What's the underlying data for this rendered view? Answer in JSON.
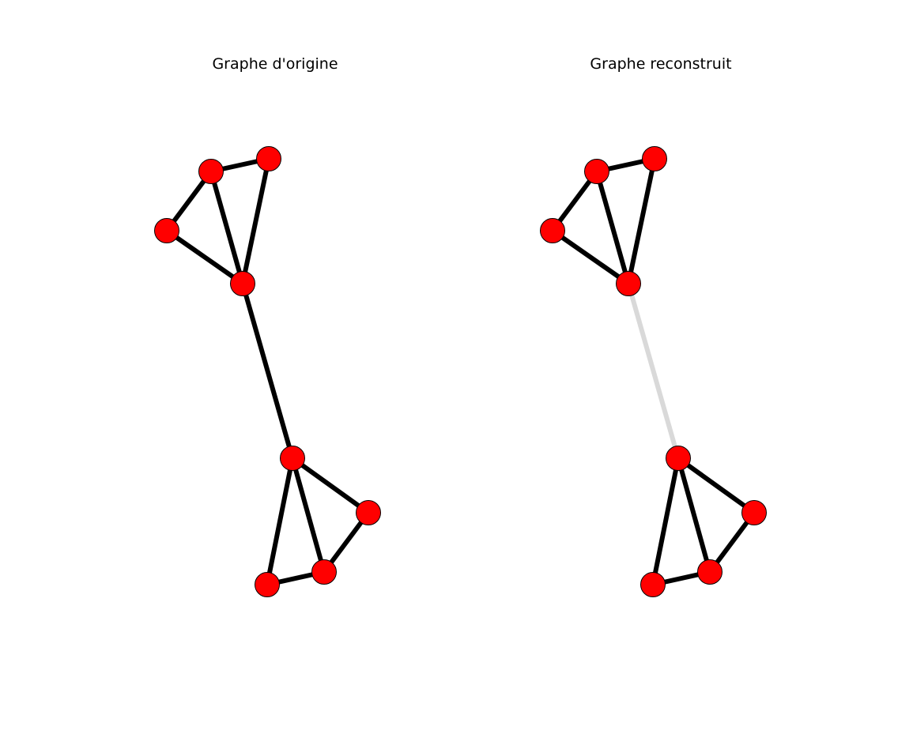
{
  "panels": [
    {
      "title": "Graphe d'origine",
      "graph": {
        "node_color": "#ff0000",
        "edge_color": "#000000",
        "nodes": [
          "0",
          "1",
          "2",
          "3",
          "4",
          "5",
          "6",
          "7"
        ],
        "edges": [
          {
            "source": "0",
            "target": "1",
            "weight": 1.0
          },
          {
            "source": "0",
            "target": "2",
            "weight": 1.0
          },
          {
            "source": "0",
            "target": "3",
            "weight": 1.0
          },
          {
            "source": "1",
            "target": "3",
            "weight": 1.0
          },
          {
            "source": "2",
            "target": "3",
            "weight": 1.0
          },
          {
            "source": "3",
            "target": "4",
            "weight": 1.0
          },
          {
            "source": "4",
            "target": "5",
            "weight": 1.0
          },
          {
            "source": "4",
            "target": "6",
            "weight": 1.0
          },
          {
            "source": "4",
            "target": "7",
            "weight": 1.0
          },
          {
            "source": "5",
            "target": "6",
            "weight": 1.0
          },
          {
            "source": "6",
            "target": "7",
            "weight": 1.0
          }
        ]
      }
    },
    {
      "title": "Graphe reconstruit",
      "graph": {
        "node_color": "#ff0000",
        "edge_color": "#000000",
        "nodes": [
          "0",
          "1",
          "2",
          "3",
          "4",
          "5",
          "6",
          "7"
        ],
        "edges": [
          {
            "source": "0",
            "target": "1",
            "weight": 1.0
          },
          {
            "source": "0",
            "target": "2",
            "weight": 1.0
          },
          {
            "source": "0",
            "target": "3",
            "weight": 1.0
          },
          {
            "source": "1",
            "target": "3",
            "weight": 1.0
          },
          {
            "source": "2",
            "target": "3",
            "weight": 1.0
          },
          {
            "source": "3",
            "target": "4",
            "weight": 0.15
          },
          {
            "source": "4",
            "target": "5",
            "weight": 1.0
          },
          {
            "source": "4",
            "target": "6",
            "weight": 1.0
          },
          {
            "source": "4",
            "target": "7",
            "weight": 1.0
          },
          {
            "source": "5",
            "target": "6",
            "weight": 1.0
          },
          {
            "source": "6",
            "target": "7",
            "weight": 1.0
          }
        ]
      }
    }
  ]
}
